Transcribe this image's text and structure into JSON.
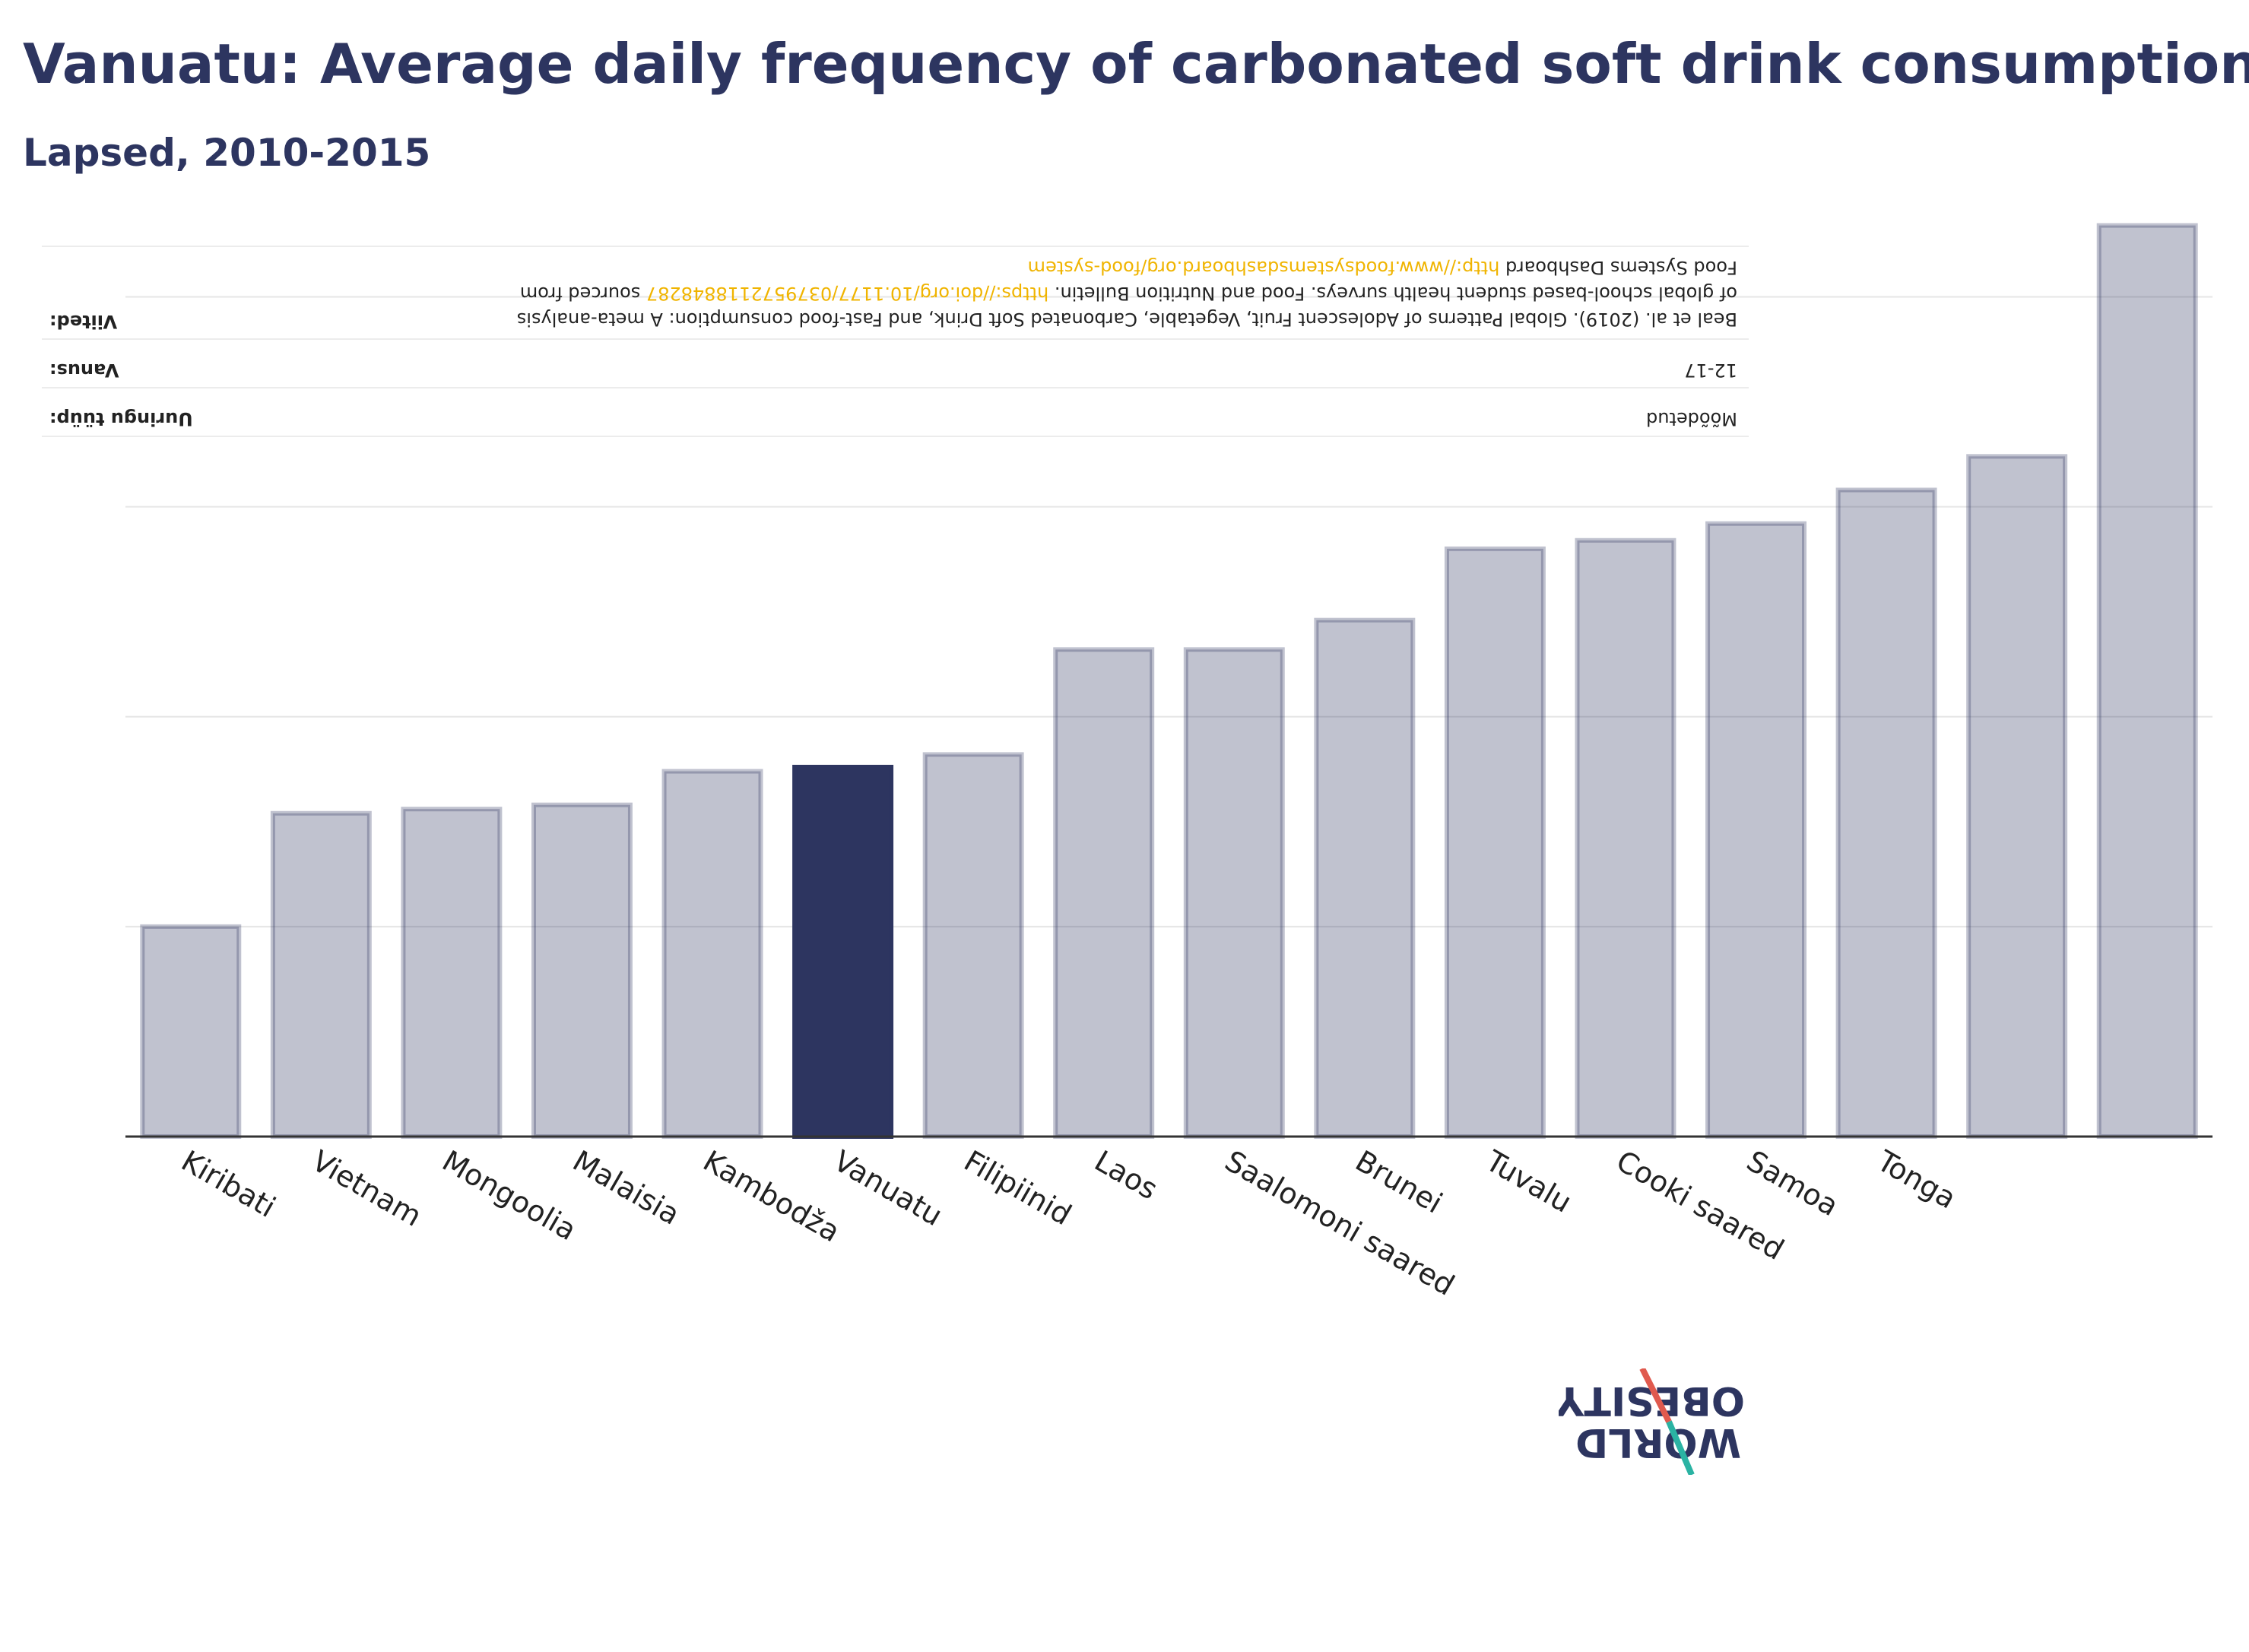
{
  "title": "Vanuatu: Average daily frequency of carbonated soft drink consumption",
  "subtitle": "Lapsed, 2010-2015",
  "info": {
    "type_label": "Uuringu tüüp:",
    "type_value": "Mõõdetud",
    "age_label": "Vanus:",
    "age_value": "12-17",
    "source_label": "Viited:",
    "source_line1": "Beal et al. (2019). Global Patterns of Adolescent Fruit, Vegetable, Carbonated Soft Drink, and Fast-food consumption: A meta-analysis",
    "source_line2_pre": "of global school-based student health surveys. Food and Nutrition Bulletin.",
    "source_line2_link": "https://doi.org/10.1177/0379572118848287",
    "source_line2_post": "sourced from",
    "source_line3_pre": "Food Systems Dashboard",
    "source_line3_link": "http://www.foodsystemsdashboard.org/food-system"
  },
  "logo": {
    "line1": "OBESITY",
    "line2": "WORLD"
  },
  "colors": {
    "bar": "#2d3560",
    "highlight": "#2d3560",
    "link": "#f0b400",
    "logo_slash_red": "#e05a4e",
    "logo_slash_teal": "#2bb3a3"
  },
  "chart_data": {
    "type": "bar",
    "title": "Vanuatu: Average daily frequency of carbonated soft drink consumption",
    "subtitle": "Lapsed, 2010-2015",
    "xlabel": "",
    "ylabel": "",
    "grid": true,
    "highlight": "Vanuatu",
    "categories": [
      "Kiribati",
      "Vietnam",
      "Mongoolia",
      "Malaisia",
      "Kambodža",
      "Vanuatu",
      "Filipiinid",
      "Laos",
      "Saalomoni saared",
      "Brunei",
      "Tuvalu",
      "Cooki saared",
      "Samoa",
      "Tonga",
      "",
      ""
    ],
    "values": [
      0.5,
      0.77,
      0.78,
      0.79,
      0.87,
      0.88,
      0.91,
      1.16,
      1.16,
      1.23,
      1.4,
      1.42,
      1.46,
      1.54,
      1.62,
      2.17
    ],
    "ylim": [
      0,
      2.2
    ]
  }
}
